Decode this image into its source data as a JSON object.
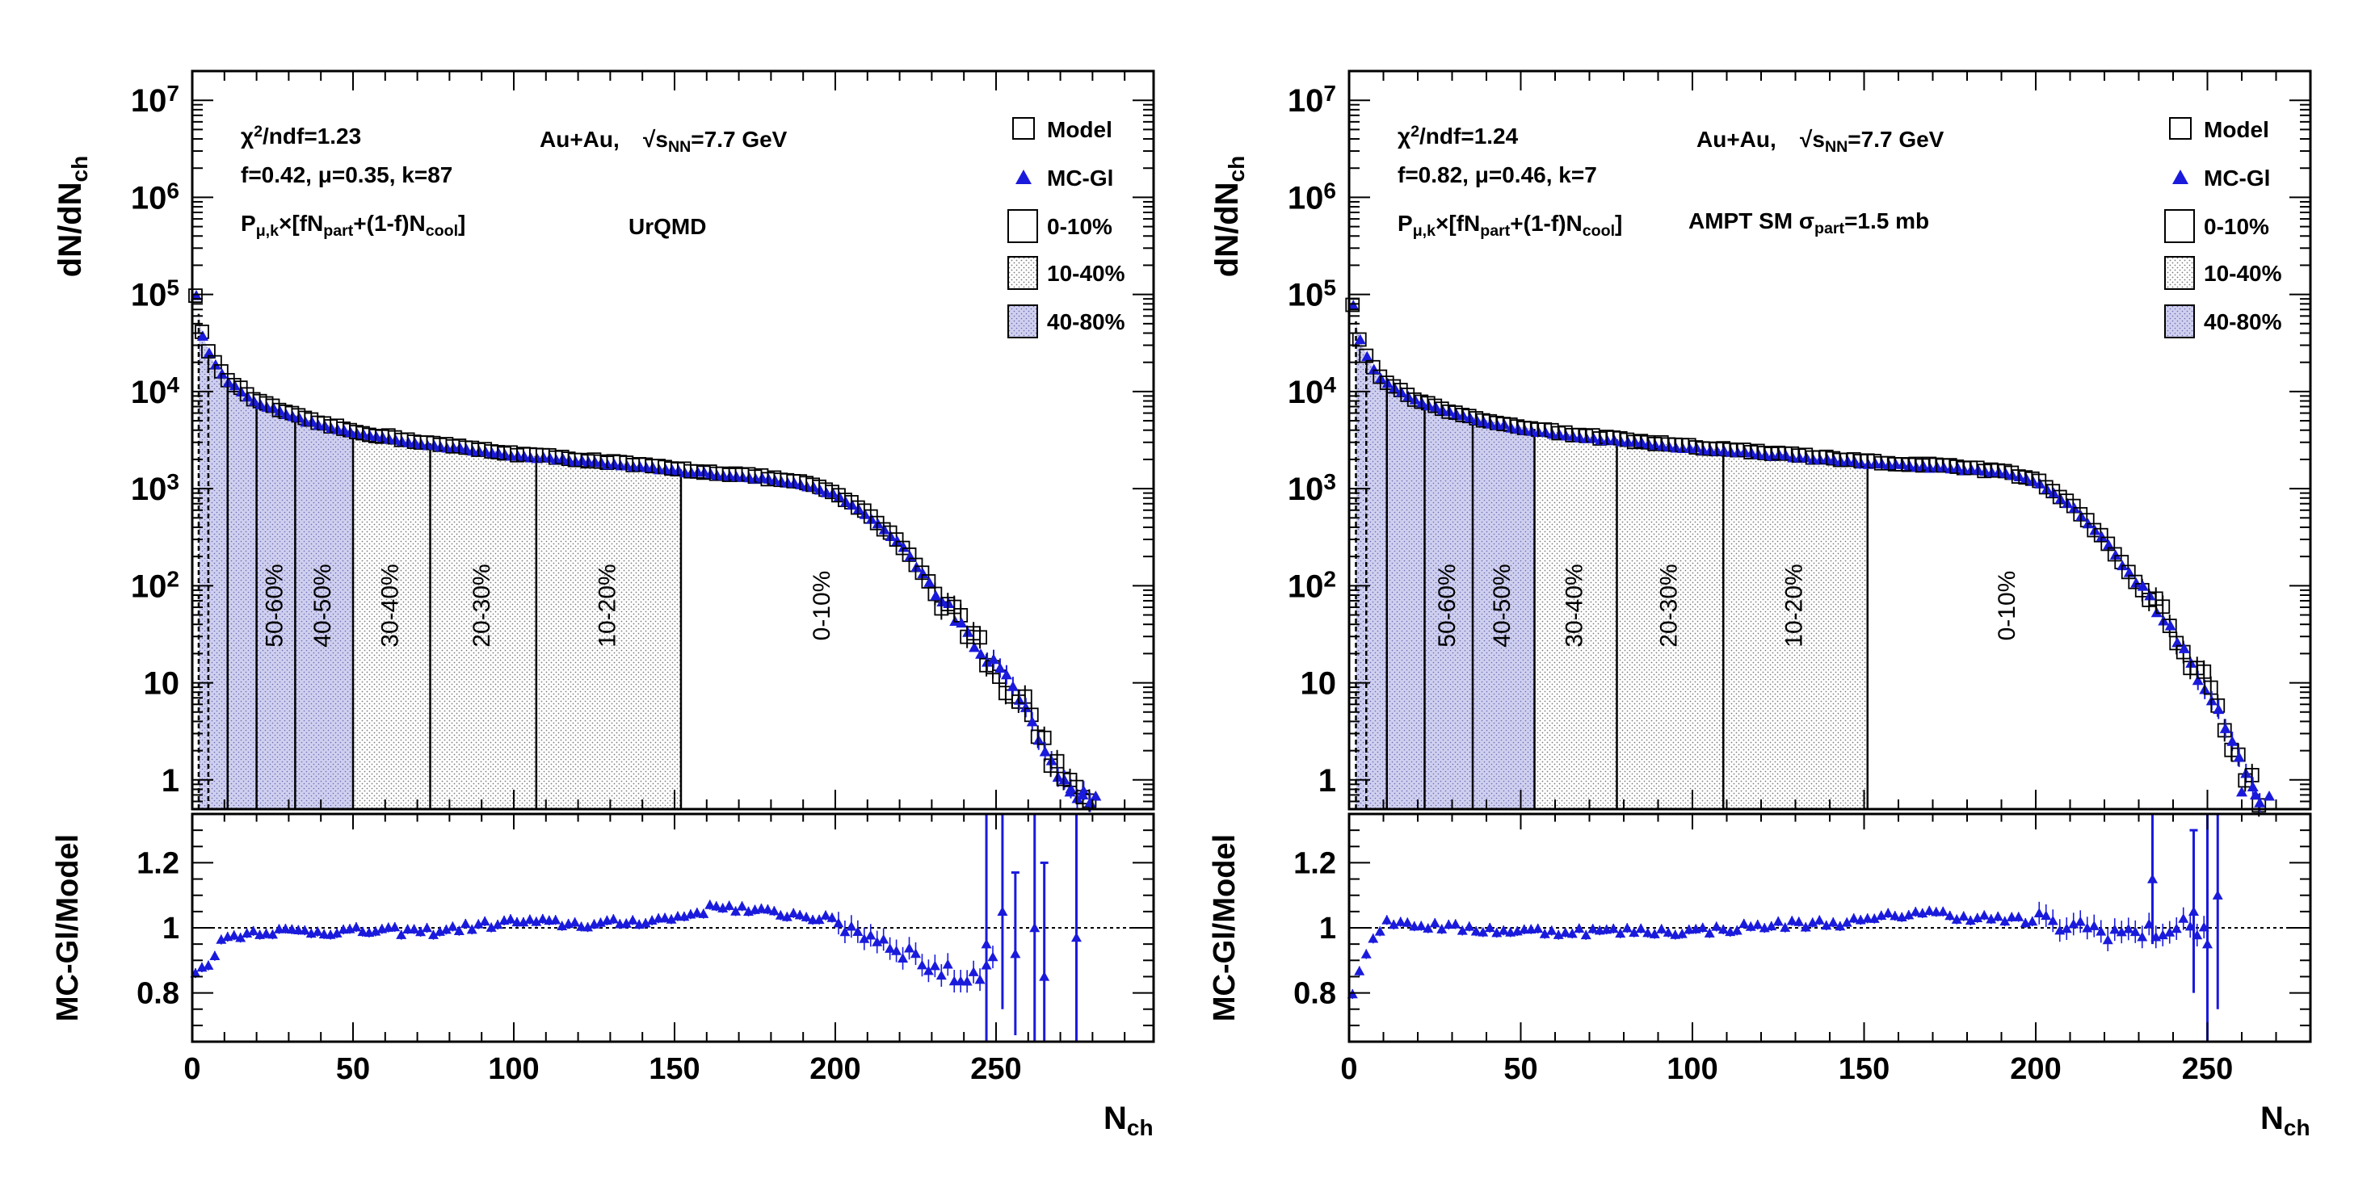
{
  "figure": {
    "x_title_main": "N",
    "x_title_sub": "ch",
    "y_title_top_main": "dN/dN",
    "y_title_top_sub": "ch",
    "y_title_bottom": "MC-Gl/Model",
    "colors": {
      "mc": "#1a1adc",
      "model": "#000000",
      "band_periph": "#c8c8e8",
      "band_mid": "#e0e0e0",
      "frame": "#000000"
    }
  },
  "chart_data": [
    {
      "type": "scatter",
      "id": "left",
      "fit_text": [
        "χ²/ndf=1.23",
        "f=0.42,  μ=0.35, k=87"
      ],
      "formula": {
        "pre": "P",
        "pre_sub": "μ,k",
        "mid": "×[fN",
        "part": "part",
        "mid2": "+(1-f)N",
        "cool": "cool",
        "post": "]"
      },
      "system_label": "Au+Au,",
      "energy_label": {
        "root": "√s",
        "sub": "NN",
        "val": "=7.7 GeV"
      },
      "model_label": "UrQMD",
      "legend": [
        {
          "key": "model",
          "label": "Model"
        },
        {
          "key": "mc",
          "label": "MC-Gl"
        },
        {
          "key": "c0",
          "label": "0-10%"
        },
        {
          "key": "c1",
          "label": "10-40%"
        },
        {
          "key": "c2",
          "label": "40-80%"
        }
      ],
      "xlim": [
        0,
        299
      ],
      "ylim_log": [
        0.5,
        20000000
      ],
      "ratio_ylim": [
        0.65,
        1.35
      ],
      "x_ticks": [
        0,
        50,
        100,
        150,
        200,
        250
      ],
      "y_ticks": [
        {
          "v": 1,
          "label": "1"
        },
        {
          "v": 10,
          "label": "10"
        },
        {
          "v": 100,
          "label": "10",
          "exp": "2"
        },
        {
          "v": 1000,
          "label": "10",
          "exp": "3"
        },
        {
          "v": 10000,
          "label": "10",
          "exp": "4"
        },
        {
          "v": 100000,
          "label": "10",
          "exp": "5"
        },
        {
          "v": 1000000,
          "label": "10",
          "exp": "6"
        },
        {
          "v": 10000000,
          "label": "10",
          "exp": "7"
        }
      ],
      "ratio_ticks": [
        {
          "v": 0.8,
          "label": "0.8"
        },
        {
          "v": 1.0,
          "label": "1"
        },
        {
          "v": 1.2,
          "label": "1.2"
        }
      ],
      "centrality_edges": [
        2,
        5,
        11,
        20,
        32,
        50,
        74,
        107,
        152
      ],
      "centrality_bins": [
        {
          "label": "50-60%",
          "lo": 20,
          "hi": 32,
          "fill": "periph"
        },
        {
          "label": "40-50%",
          "lo": 32,
          "hi": 50,
          "fill": "periph"
        },
        {
          "label": "30-40%",
          "lo": 50,
          "hi": 74,
          "fill": "mid"
        },
        {
          "label": "20-30%",
          "lo": 74,
          "hi": 107,
          "fill": "mid"
        },
        {
          "label": "10-20%",
          "lo": 107,
          "hi": 152,
          "fill": "mid"
        },
        {
          "label": "0-10%",
          "lo": 152,
          "hi": 275,
          "fill": "none"
        }
      ],
      "periph_fill_range": [
        2,
        50
      ],
      "curve_knots": [
        [
          1,
          100000
        ],
        [
          3,
          40000
        ],
        [
          6,
          22000
        ],
        [
          10,
          14000
        ],
        [
          20,
          8000
        ],
        [
          35,
          5200
        ],
        [
          50,
          3900
        ],
        [
          75,
          2900
        ],
        [
          100,
          2300
        ],
        [
          125,
          1950
        ],
        [
          150,
          1600
        ],
        [
          175,
          1350
        ],
        [
          190,
          1150
        ],
        [
          200,
          900
        ],
        [
          210,
          550
        ],
        [
          220,
          280
        ],
        [
          230,
          100
        ],
        [
          240,
          40
        ],
        [
          250,
          14
        ],
        [
          260,
          5
        ],
        [
          265,
          2.5
        ],
        [
          270,
          1.2
        ],
        [
          275,
          0.7
        ]
      ],
      "xmax_curve": 279,
      "ratio_knots": [
        [
          1,
          0.86
        ],
        [
          4,
          0.88
        ],
        [
          10,
          0.97
        ],
        [
          20,
          0.99
        ],
        [
          50,
          0.99
        ],
        [
          75,
          0.99
        ],
        [
          100,
          1.02
        ],
        [
          125,
          1.01
        ],
        [
          150,
          1.03
        ],
        [
          165,
          1.07
        ],
        [
          175,
          1.05
        ],
        [
          190,
          1.04
        ],
        [
          200,
          1.02
        ],
        [
          210,
          0.98
        ],
        [
          220,
          0.94
        ],
        [
          230,
          0.88
        ],
        [
          240,
          0.84
        ],
        [
          250,
          0.9
        ]
      ],
      "ratio_big_errors": [
        [
          247,
          0.95,
          0.45
        ],
        [
          252,
          1.05,
          0.3
        ],
        [
          256,
          0.92,
          0.25
        ],
        [
          262,
          1.0,
          0.4
        ],
        [
          265,
          0.85,
          0.35
        ],
        [
          275,
          0.97,
          0.5
        ]
      ]
    },
    {
      "type": "scatter",
      "id": "right",
      "fit_text": [
        "χ²/ndf=1.24",
        "f=0.82,  μ=0.46, k=7"
      ],
      "formula": {
        "pre": "P",
        "pre_sub": "μ,k",
        "mid": "×[fN",
        "part": "part",
        "mid2": "+(1-f)N",
        "cool": "cool",
        "post": "]"
      },
      "system_label": "Au+Au,",
      "energy_label": {
        "root": "√s",
        "sub": "NN",
        "val": "=7.7 GeV"
      },
      "model_label": "AMPT SM σ",
      "model_label_sub": "part",
      "model_label_post": "=1.5 mb",
      "legend": [
        {
          "key": "model",
          "label": "Model"
        },
        {
          "key": "mc",
          "label": "MC-Gl"
        },
        {
          "key": "c0",
          "label": "0-10%"
        },
        {
          "key": "c1",
          "label": "10-40%"
        },
        {
          "key": "c2",
          "label": "40-80%"
        }
      ],
      "xlim": [
        0,
        280
      ],
      "ylim_log": [
        0.5,
        20000000
      ],
      "ratio_ylim": [
        0.65,
        1.35
      ],
      "x_ticks": [
        0,
        50,
        100,
        150,
        200,
        250
      ],
      "y_ticks": [
        {
          "v": 1,
          "label": "1"
        },
        {
          "v": 10,
          "label": "10"
        },
        {
          "v": 100,
          "label": "10",
          "exp": "2"
        },
        {
          "v": 1000,
          "label": "10",
          "exp": "3"
        },
        {
          "v": 10000,
          "label": "10",
          "exp": "4"
        },
        {
          "v": 100000,
          "label": "10",
          "exp": "5"
        },
        {
          "v": 1000000,
          "label": "10",
          "exp": "6"
        },
        {
          "v": 10000000,
          "label": "10",
          "exp": "7"
        }
      ],
      "ratio_ticks": [
        {
          "v": 0.8,
          "label": "0.8"
        },
        {
          "v": 1.0,
          "label": "1"
        },
        {
          "v": 1.2,
          "label": "1.2"
        }
      ],
      "centrality_edges": [
        2,
        5,
        11,
        22,
        36,
        54,
        78,
        109,
        151
      ],
      "centrality_bins": [
        {
          "label": "50-60%",
          "lo": 22,
          "hi": 36,
          "fill": "periph"
        },
        {
          "label": "40-50%",
          "lo": 36,
          "hi": 54,
          "fill": "periph"
        },
        {
          "label": "30-40%",
          "lo": 54,
          "hi": 78,
          "fill": "mid"
        },
        {
          "label": "20-30%",
          "lo": 78,
          "hi": 109,
          "fill": "mid"
        },
        {
          "label": "10-20%",
          "lo": 109,
          "hi": 151,
          "fill": "mid"
        },
        {
          "label": "0-10%",
          "lo": 151,
          "hi": 265,
          "fill": "none"
        }
      ],
      "periph_fill_range": [
        2,
        54
      ],
      "curve_knots": [
        [
          1,
          80000
        ],
        [
          3,
          35000
        ],
        [
          6,
          20000
        ],
        [
          10,
          13000
        ],
        [
          20,
          8000
        ],
        [
          35,
          5500
        ],
        [
          50,
          4300
        ],
        [
          75,
          3300
        ],
        [
          100,
          2700
        ],
        [
          125,
          2300
        ],
        [
          150,
          1900
        ],
        [
          175,
          1700
        ],
        [
          190,
          1500
        ],
        [
          200,
          1250
        ],
        [
          210,
          700
        ],
        [
          220,
          300
        ],
        [
          230,
          100
        ],
        [
          240,
          35
        ],
        [
          250,
          9
        ],
        [
          255,
          4
        ],
        [
          260,
          1.5
        ],
        [
          265,
          0.7
        ]
      ],
      "xmax_curve": 266,
      "ratio_knots": [
        [
          1,
          0.8
        ],
        [
          4,
          0.9
        ],
        [
          8,
          0.99
        ],
        [
          12,
          1.02
        ],
        [
          30,
          1.0
        ],
        [
          50,
          0.99
        ],
        [
          75,
          0.99
        ],
        [
          100,
          0.99
        ],
        [
          125,
          1.01
        ],
        [
          150,
          1.02
        ],
        [
          165,
          1.05
        ],
        [
          185,
          1.03
        ],
        [
          200,
          1.02
        ],
        [
          215,
          1.0
        ],
        [
          230,
          0.98
        ],
        [
          240,
          1.0
        ]
      ],
      "ratio_big_errors": [
        [
          234,
          1.15,
          0.2
        ],
        [
          246,
          1.05,
          0.25
        ],
        [
          250,
          0.95,
          0.4
        ],
        [
          253,
          1.1,
          0.35
        ]
      ]
    }
  ]
}
